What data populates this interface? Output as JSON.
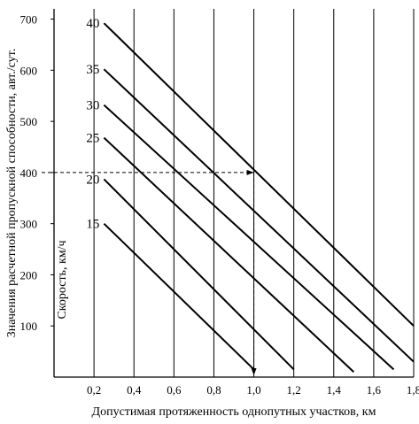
{
  "chart_data": {
    "type": "line",
    "xlabel": "Допустимая протяженность однопутных участков, км",
    "ylabel": "Значения расчетной пропускной способности, авт./сут.",
    "inner_label": "Скорость, км/ч",
    "xlim": [
      0,
      1.8
    ],
    "ylim": [
      0,
      720
    ],
    "x_ticks": [
      "0,2",
      "0,4",
      "0,6",
      "0,8",
      "1,0",
      "1,2",
      "1,4",
      "1,6",
      "1,8"
    ],
    "x_tick_values": [
      0.2,
      0.4,
      0.6,
      0.8,
      1.0,
      1.2,
      1.4,
      1.6,
      1.8
    ],
    "y_ticks": [
      "100",
      "200",
      "300",
      "400",
      "500",
      "600",
      "700"
    ],
    "y_tick_values": [
      100,
      200,
      300,
      400,
      500,
      600,
      700
    ],
    "grid": "vertical",
    "series": [
      {
        "name": "40",
        "points": [
          [
            0.25,
            692
          ],
          [
            1.8,
            100
          ]
        ]
      },
      {
        "name": "35",
        "points": [
          [
            0.25,
            602
          ],
          [
            1.8,
            30
          ]
        ]
      },
      {
        "name": "30",
        "points": [
          [
            0.25,
            532
          ],
          [
            1.7,
            15
          ]
        ]
      },
      {
        "name": "25",
        "points": [
          [
            0.25,
            468
          ],
          [
            1.5,
            10
          ]
        ]
      },
      {
        "name": "20",
        "points": [
          [
            0.25,
            387
          ],
          [
            1.2,
            15
          ]
        ]
      },
      {
        "name": "15",
        "points": [
          [
            0.25,
            300
          ],
          [
            1.0,
            15
          ]
        ]
      }
    ],
    "annotation": {
      "y": 400,
      "x": 1.0
    }
  }
}
